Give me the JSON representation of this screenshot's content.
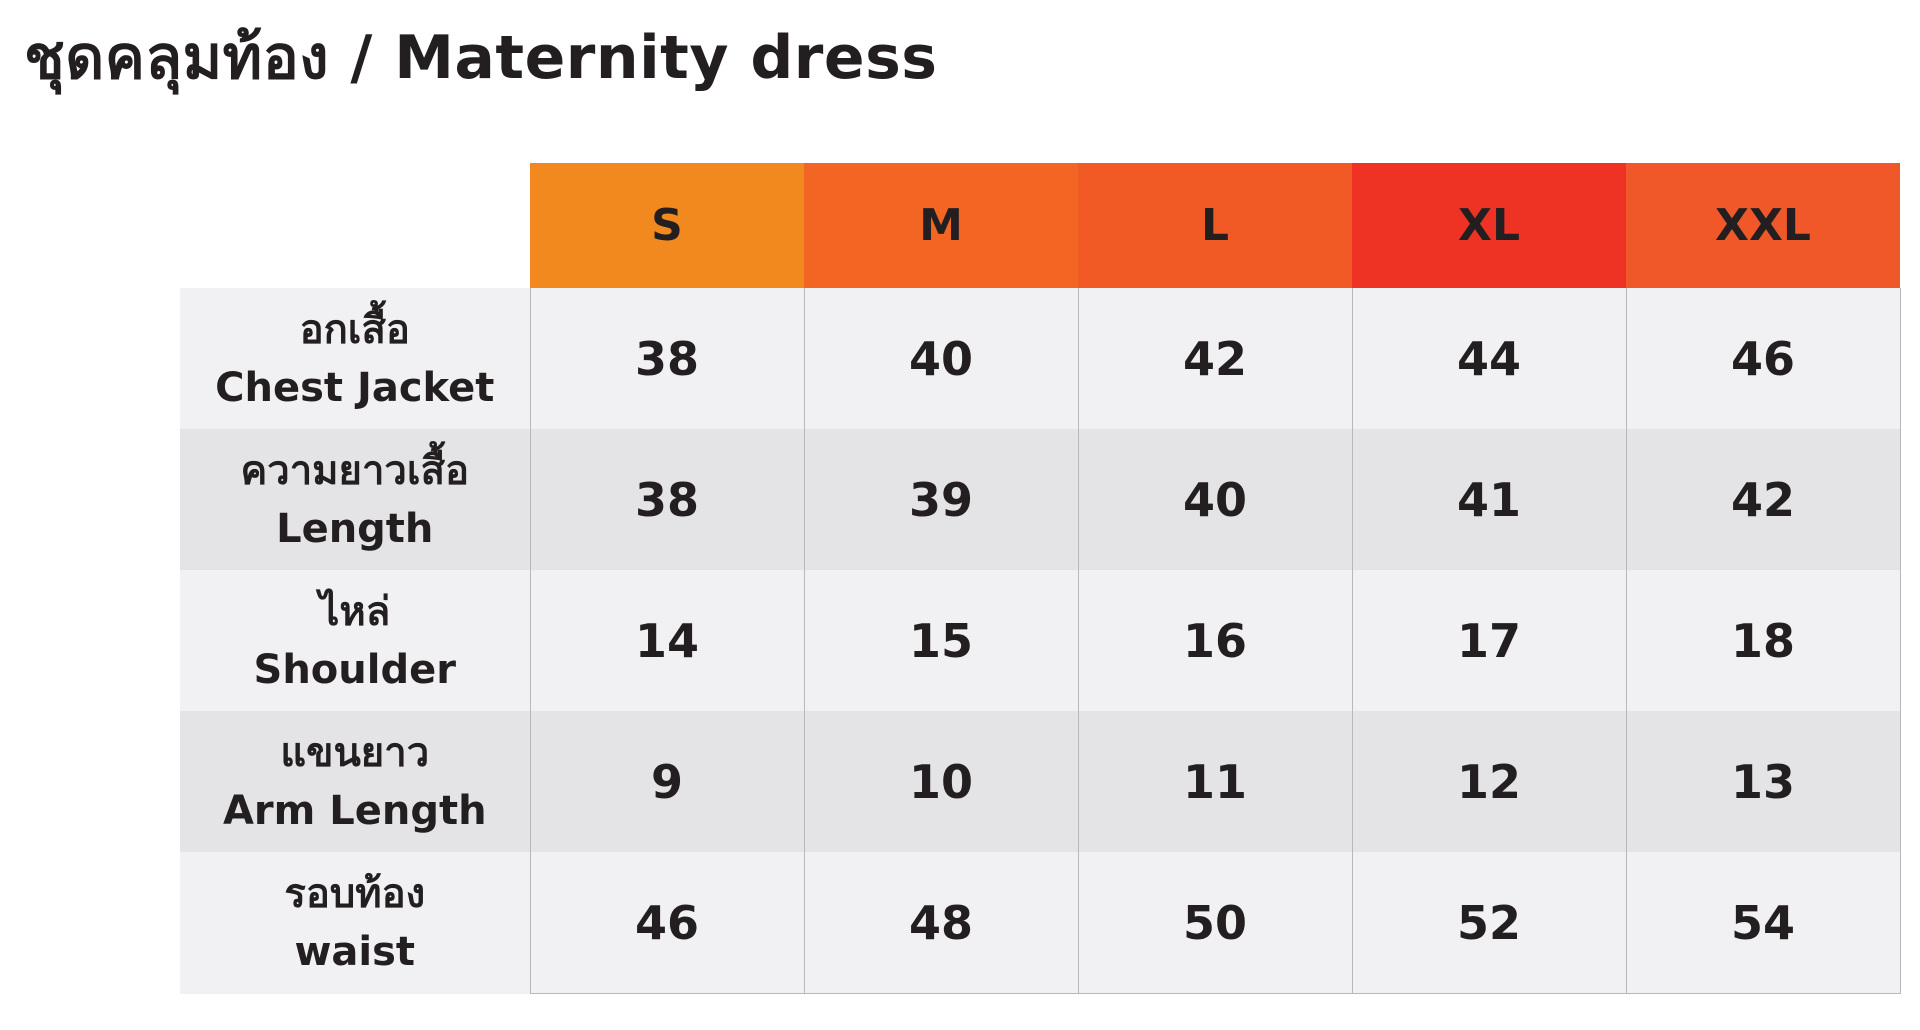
{
  "title": "ชุดคลุมท้อง / Maternity dress",
  "colors": {
    "header_gradient": [
      "#f2891f",
      "#f26522",
      "#f15a24",
      "#ee3325",
      "#f0582a"
    ],
    "row_light": "#f1f1f3",
    "row_dark": "#e4e4e6",
    "text": "#231f20"
  },
  "table": {
    "sizes": [
      "S",
      "M",
      "L",
      "XL",
      "XXL"
    ],
    "rows": [
      {
        "label_th": "อกเสื้อ",
        "label_en": "Chest Jacket",
        "values": [
          "38",
          "40",
          "42",
          "44",
          "46"
        ]
      },
      {
        "label_th": "ความยาวเสื้อ",
        "label_en": "Length",
        "values": [
          "38",
          "39",
          "40",
          "41",
          "42"
        ]
      },
      {
        "label_th": "ไหล่",
        "label_en": "Shoulder",
        "values": [
          "14",
          "15",
          "16",
          "17",
          "18"
        ]
      },
      {
        "label_th": "แขนยาว",
        "label_en": "Arm Length",
        "values": [
          "9",
          "10",
          "11",
          "12",
          "13"
        ]
      },
      {
        "label_th": "รอบท้อง",
        "label_en": "waist",
        "values": [
          "46",
          "48",
          "50",
          "52",
          "54"
        ]
      }
    ]
  }
}
